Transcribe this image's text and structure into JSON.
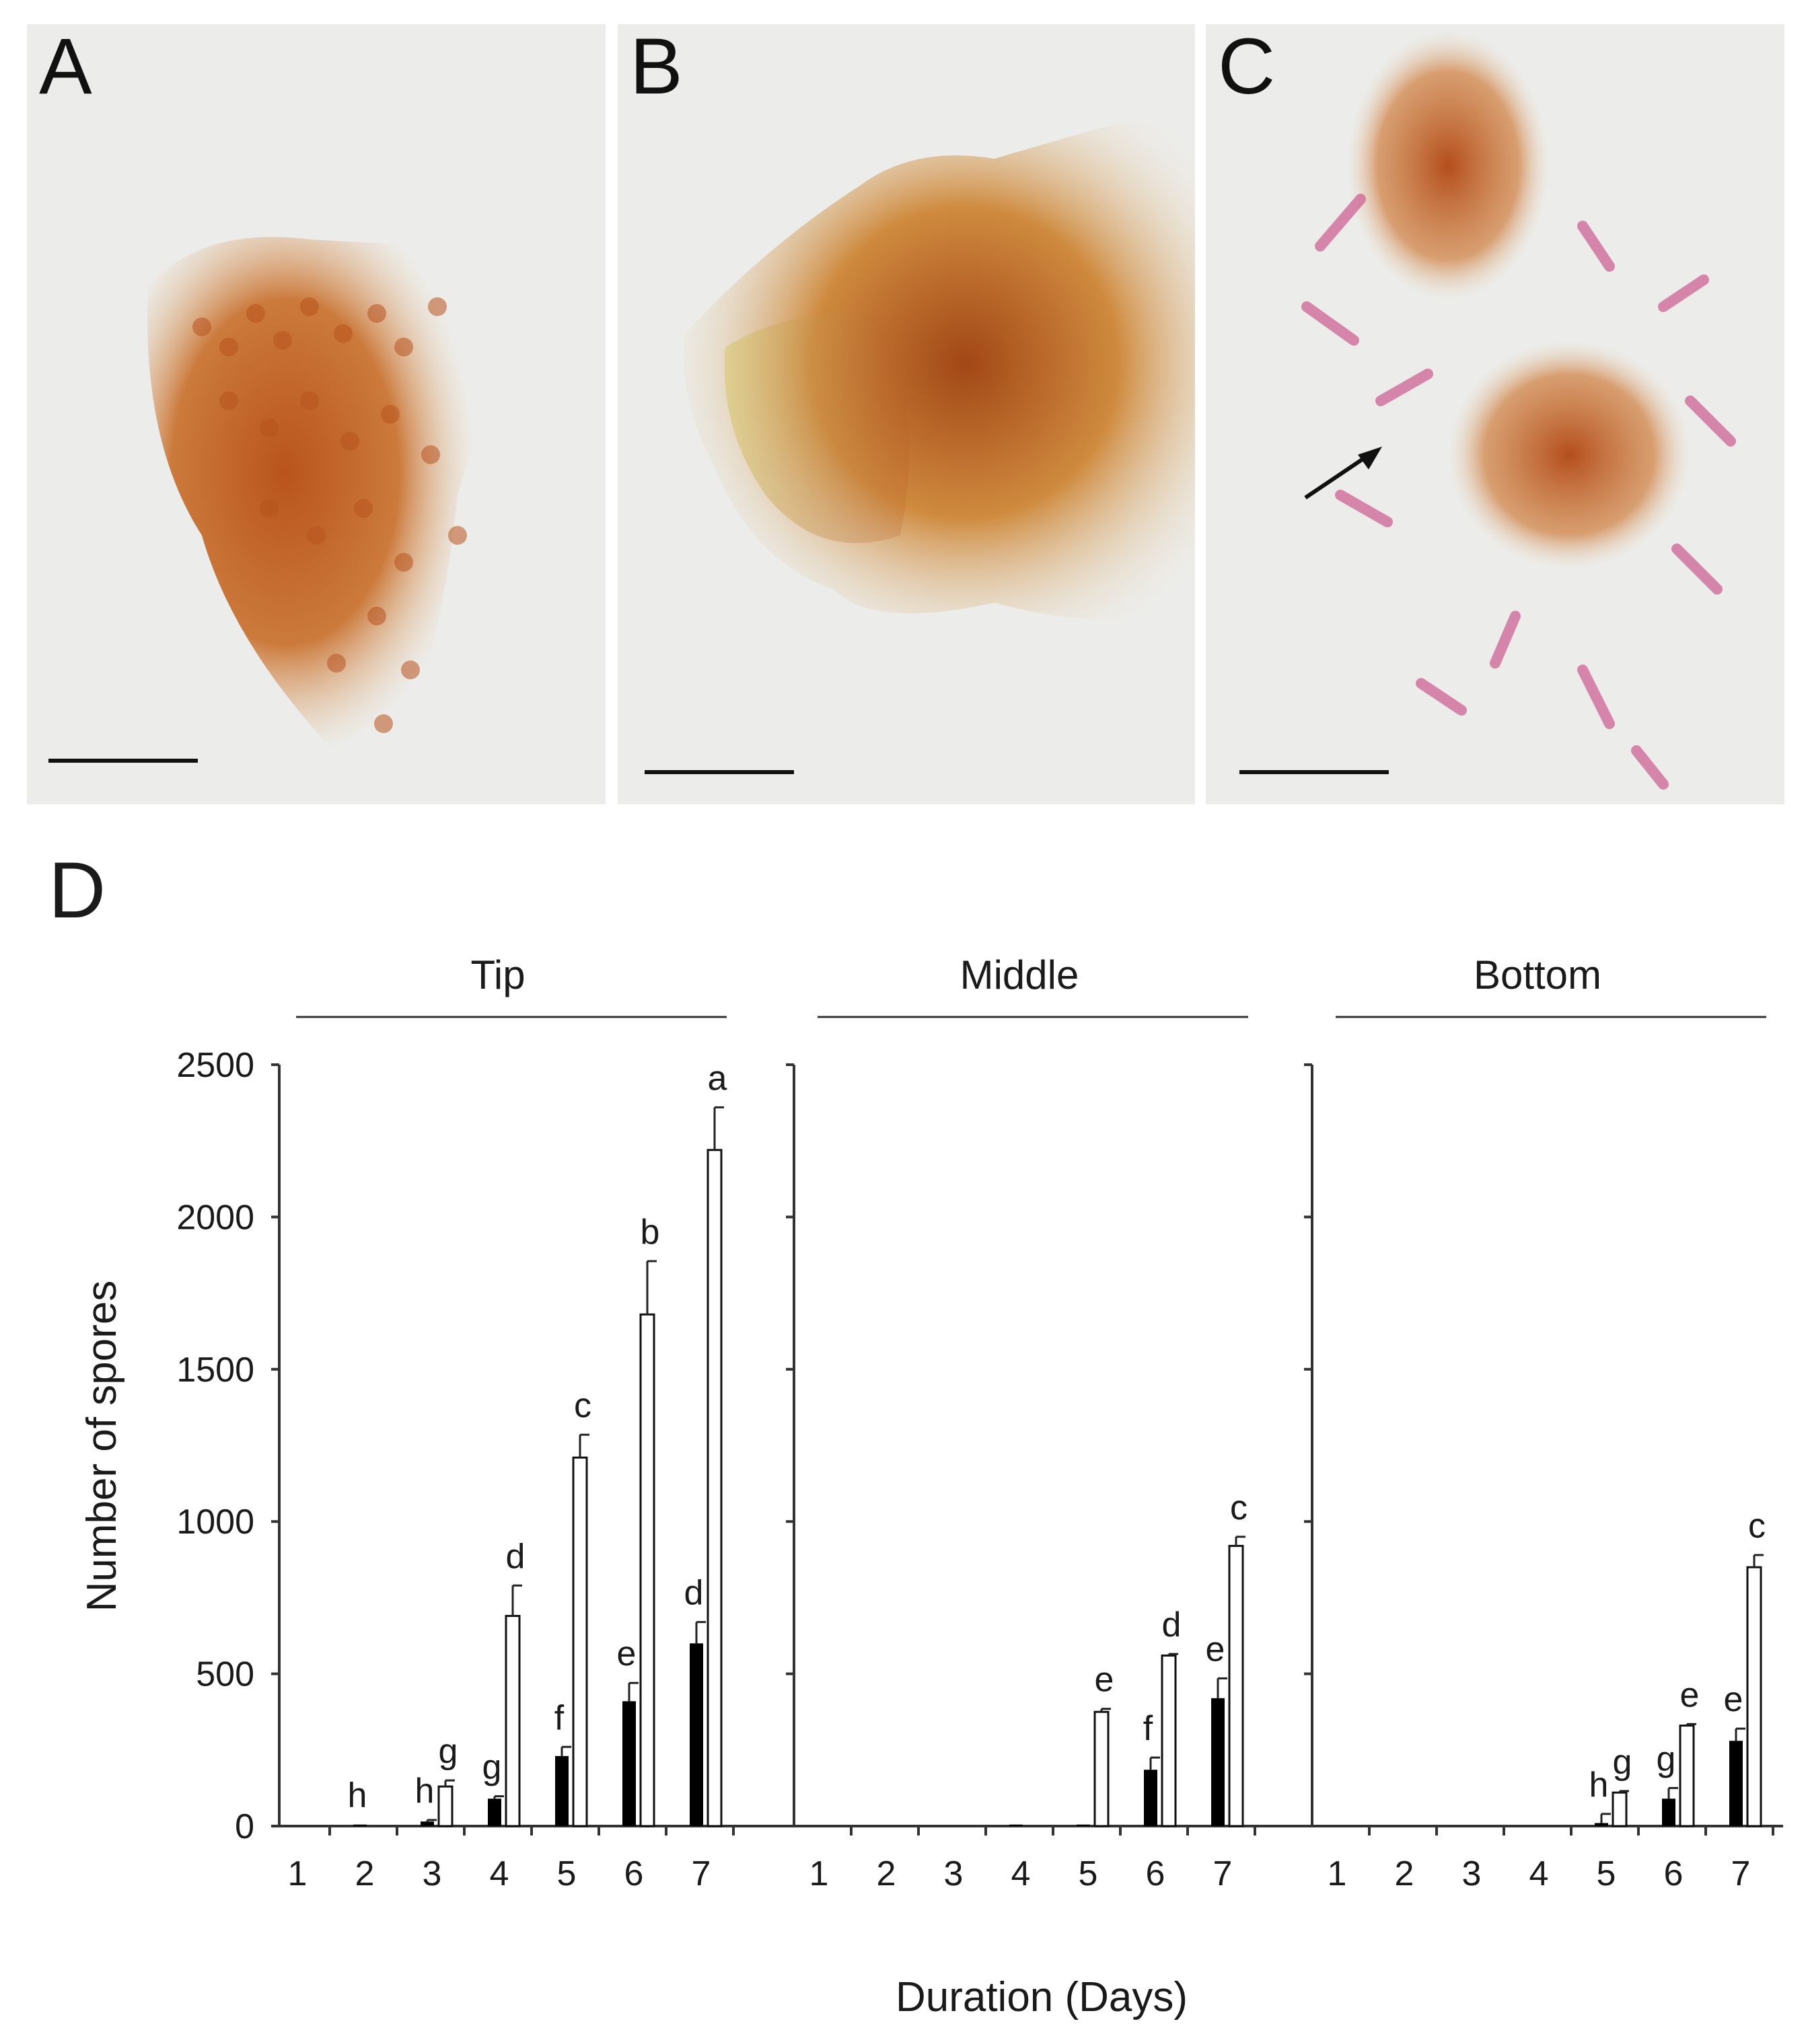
{
  "panels": [
    {
      "letter": "A"
    },
    {
      "letter": "B"
    },
    {
      "letter": "C"
    }
  ],
  "chart_panel_letter": "D",
  "chart_data": {
    "type": "bar",
    "ylabel": "Number of spores",
    "xlabel": "Duration (Days)",
    "ylim": [
      0,
      2500
    ],
    "yticks": [
      0,
      500,
      1000,
      1500,
      2000,
      2500
    ],
    "categories": [
      "1",
      "2",
      "3",
      "4",
      "5",
      "6",
      "7"
    ],
    "bar_colors": [
      "#000000",
      "#ffffff"
    ],
    "groups": [
      {
        "title": "Tip",
        "filled": [
          0,
          5,
          15,
          90,
          230,
          410,
          600
        ],
        "filled_err": [
          0,
          0,
          5,
          8,
          30,
          60,
          70
        ],
        "filled_letters": [
          "",
          "h",
          "h",
          "g",
          "f",
          "e",
          "d"
        ],
        "open": [
          0,
          0,
          130,
          690,
          1210,
          1680,
          2220
        ],
        "open_err": [
          0,
          0,
          20,
          100,
          75,
          175,
          140
        ],
        "open_letters": [
          "",
          "",
          "g",
          "d",
          "c",
          "b",
          "a"
        ]
      },
      {
        "title": "Middle",
        "filled": [
          0,
          0,
          0,
          5,
          5,
          185,
          420
        ],
        "filled_err": [
          0,
          0,
          0,
          0,
          0,
          40,
          65
        ],
        "filled_letters": [
          "",
          "",
          "",
          "",
          "",
          "f",
          "e"
        ],
        "open": [
          0,
          0,
          0,
          0,
          375,
          560,
          920
        ],
        "open_err": [
          0,
          0,
          0,
          0,
          10,
          5,
          30
        ],
        "open_letters": [
          "",
          "",
          "",
          "",
          "e",
          "d",
          "c"
        ]
      },
      {
        "title": "Bottom",
        "filled": [
          0,
          0,
          0,
          0,
          10,
          90,
          280
        ],
        "filled_err": [
          0,
          0,
          0,
          0,
          30,
          35,
          40
        ],
        "filled_letters": [
          "",
          "",
          "",
          "",
          "h",
          "g",
          "e"
        ],
        "open": [
          0,
          0,
          0,
          0,
          110,
          330,
          850
        ],
        "open_err": [
          0,
          0,
          0,
          0,
          5,
          5,
          40
        ],
        "open_letters": [
          "",
          "",
          "",
          "",
          "g",
          "e",
          "c"
        ]
      }
    ]
  }
}
